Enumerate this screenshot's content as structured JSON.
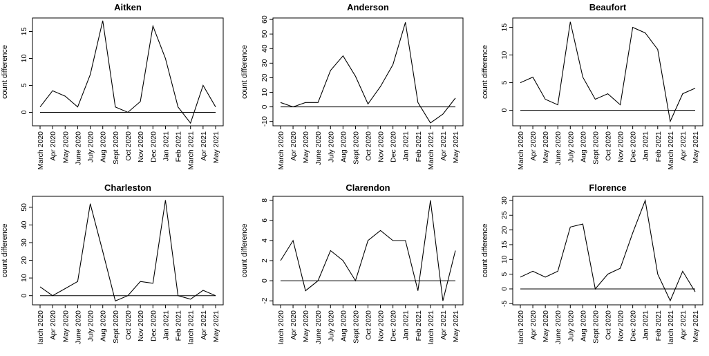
{
  "chart_data": [
    {
      "type": "line",
      "title": "Aitken",
      "ylabel": "count difference",
      "xlabel": "",
      "categories": [
        "March 2020",
        "Apr 2020",
        "May 2020",
        "June 2020",
        "July 2020",
        "Aug 2020",
        "Sept 2020",
        "Oct 2020",
        "Nov 2020",
        "Dec 2020",
        "Jan 2021",
        "Feb 2021",
        "March 2021",
        "Apr 2021",
        "May 2021"
      ],
      "values": [
        1,
        4,
        3,
        1,
        7,
        17,
        1,
        0,
        2,
        16,
        10,
        1,
        -2,
        5,
        1
      ],
      "ylim": [
        -2.5,
        17.5
      ],
      "yticks": [
        0,
        5,
        10,
        15
      ],
      "reference_line": 0
    },
    {
      "type": "line",
      "title": "Anderson",
      "ylabel": "count difference",
      "xlabel": "",
      "categories": [
        "March 2020",
        "Apr 2020",
        "May 2020",
        "June 2020",
        "July 2020",
        "Aug 2020",
        "Sept 2020",
        "Oct 2020",
        "Nov 2020",
        "Dec 2020",
        "Jan 2021",
        "Feb 2021",
        "March 2021",
        "Apr 2021",
        "May 2021"
      ],
      "values": [
        3,
        0,
        3,
        3,
        25,
        35,
        21,
        2,
        14,
        29,
        58,
        3,
        -11,
        -5,
        6
      ],
      "ylim": [
        -13,
        61
      ],
      "yticks": [
        -10,
        0,
        10,
        20,
        30,
        40,
        50,
        60
      ],
      "reference_line": 0
    },
    {
      "type": "line",
      "title": "Beaufort",
      "ylabel": "count difference",
      "xlabel": "",
      "categories": [
        "March 2020",
        "Apr 2020",
        "May 2020",
        "June 2020",
        "July 2020",
        "Aug 2020",
        "Sept 2020",
        "Oct 2020",
        "Nov 2020",
        "Dec 2020",
        "Jan 2021",
        "Feb 2021",
        "March 2021",
        "Apr 2021",
        "May 2021"
      ],
      "values": [
        5,
        6,
        2,
        1,
        16,
        6,
        2,
        3,
        1,
        15,
        14,
        11,
        -2,
        3,
        4
      ],
      "ylim": [
        -2.8,
        16.7
      ],
      "yticks": [
        0,
        5,
        10,
        15
      ],
      "reference_line": 0
    },
    {
      "type": "line",
      "title": "Charleston",
      "ylabel": "count difference",
      "xlabel": "",
      "categories": [
        "larch 2020",
        "Apr 2020",
        "May 2020",
        "June 2020",
        "July 2020",
        "Aug 2020",
        "Sept 2020",
        "Oct 2020",
        "Nov 2020",
        "Dec 2020",
        "Jan 2021",
        "Feb 2021",
        "larch 2021",
        "Apr 2021",
        "May 2021"
      ],
      "values": [
        5,
        0,
        4,
        8,
        52,
        25,
        -3,
        0,
        8,
        7,
        54,
        0,
        -2,
        3,
        0
      ],
      "ylim": [
        -5.2,
        56.2
      ],
      "yticks": [
        0,
        10,
        20,
        30,
        40,
        50
      ],
      "reference_line": 0
    },
    {
      "type": "line",
      "title": "Clarendon",
      "ylabel": "count difference",
      "xlabel": "",
      "categories": [
        "larch 2020",
        "Apr 2020",
        "May 2020",
        "June 2020",
        "July 2020",
        "Aug 2020",
        "Sept 2020",
        "Oct 2020",
        "Nov 2020",
        "Dec 2020",
        "Jan 2021",
        "Feb 2021",
        "larch 2021",
        "Apr 2021",
        "May 2021"
      ],
      "values": [
        2,
        4,
        -1,
        0,
        3,
        2,
        0,
        4,
        5,
        4,
        4,
        -1,
        8,
        -2,
        3
      ],
      "ylim": [
        -2.4,
        8.4
      ],
      "yticks": [
        -2,
        0,
        2,
        4,
        6,
        8
      ],
      "reference_line": 0
    },
    {
      "type": "line",
      "title": "Florence",
      "ylabel": "count difference",
      "xlabel": "",
      "categories": [
        "larch 2020",
        "Apr 2020",
        "May 2020",
        "June 2020",
        "July 2020",
        "Aug 2020",
        "Sept 2020",
        "Oct 2020",
        "Nov 2020",
        "Dec 2020",
        "Jan 2021",
        "Feb 2021",
        "larch 2021",
        "Apr 2021",
        "May 2021"
      ],
      "values": [
        4,
        6,
        4,
        6,
        21,
        22,
        0,
        5,
        7,
        19,
        30,
        5,
        -4,
        6,
        -1
      ],
      "ylim": [
        -5.4,
        31.4
      ],
      "yticks": [
        -5,
        0,
        5,
        10,
        15,
        20,
        25,
        30
      ],
      "reference_line": 0
    }
  ]
}
